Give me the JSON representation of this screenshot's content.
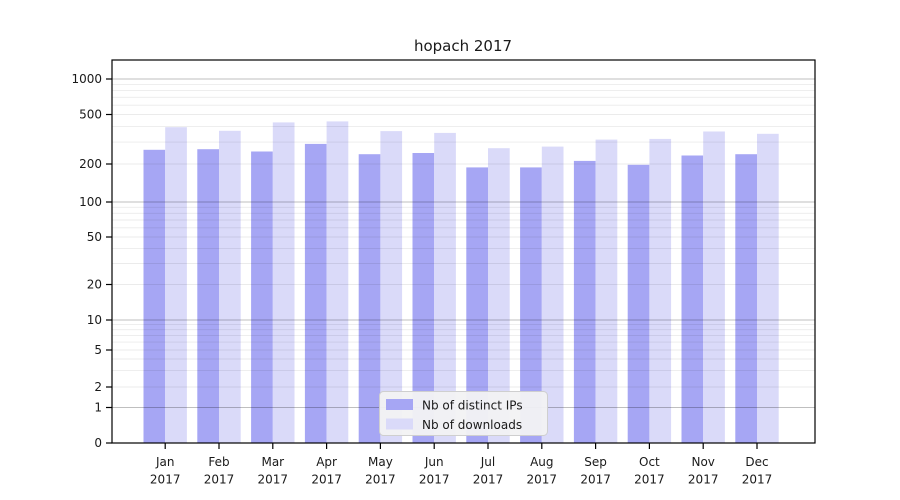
{
  "window": {
    "title": "hopach 2017"
  },
  "chart_data": {
    "type": "bar",
    "title": "hopach 2017",
    "xlabel": "",
    "ylabel": "",
    "categories": [
      "Jan",
      "Feb",
      "Mar",
      "Apr",
      "May",
      "Jun",
      "Jul",
      "Aug",
      "Sep",
      "Oct",
      "Nov",
      "Dec"
    ],
    "category_sub": "2017",
    "series": [
      {
        "name": "Nb of distinct IPs",
        "color": "#a6a6f4",
        "values": [
          260,
          263,
          252,
          290,
          240,
          245,
          188,
          188,
          212,
          197,
          234,
          240
        ]
      },
      {
        "name": "Nb of downloads",
        "color": "#dadaf9",
        "values": [
          395,
          370,
          432,
          440,
          368,
          356,
          268,
          276,
          314,
          318,
          365,
          350
        ]
      }
    ],
    "yscale": "symlog-like",
    "yticks": [
      0,
      1,
      2,
      5,
      10,
      20,
      50,
      100,
      200,
      500,
      1000
    ],
    "ylim": [
      0,
      1450
    ],
    "grid": true,
    "legend_position": "bottom-center-inside",
    "colors": {
      "axis": "#000000",
      "text": "#1a1a1a",
      "grid_major": "rgba(0,0,0,0.25)",
      "grid_minor": "rgba(0,0,0,0.08)",
      "legend_bg": "#f2f2f3",
      "legend_border": "#cfcfcf",
      "background": "#ffffff"
    }
  }
}
